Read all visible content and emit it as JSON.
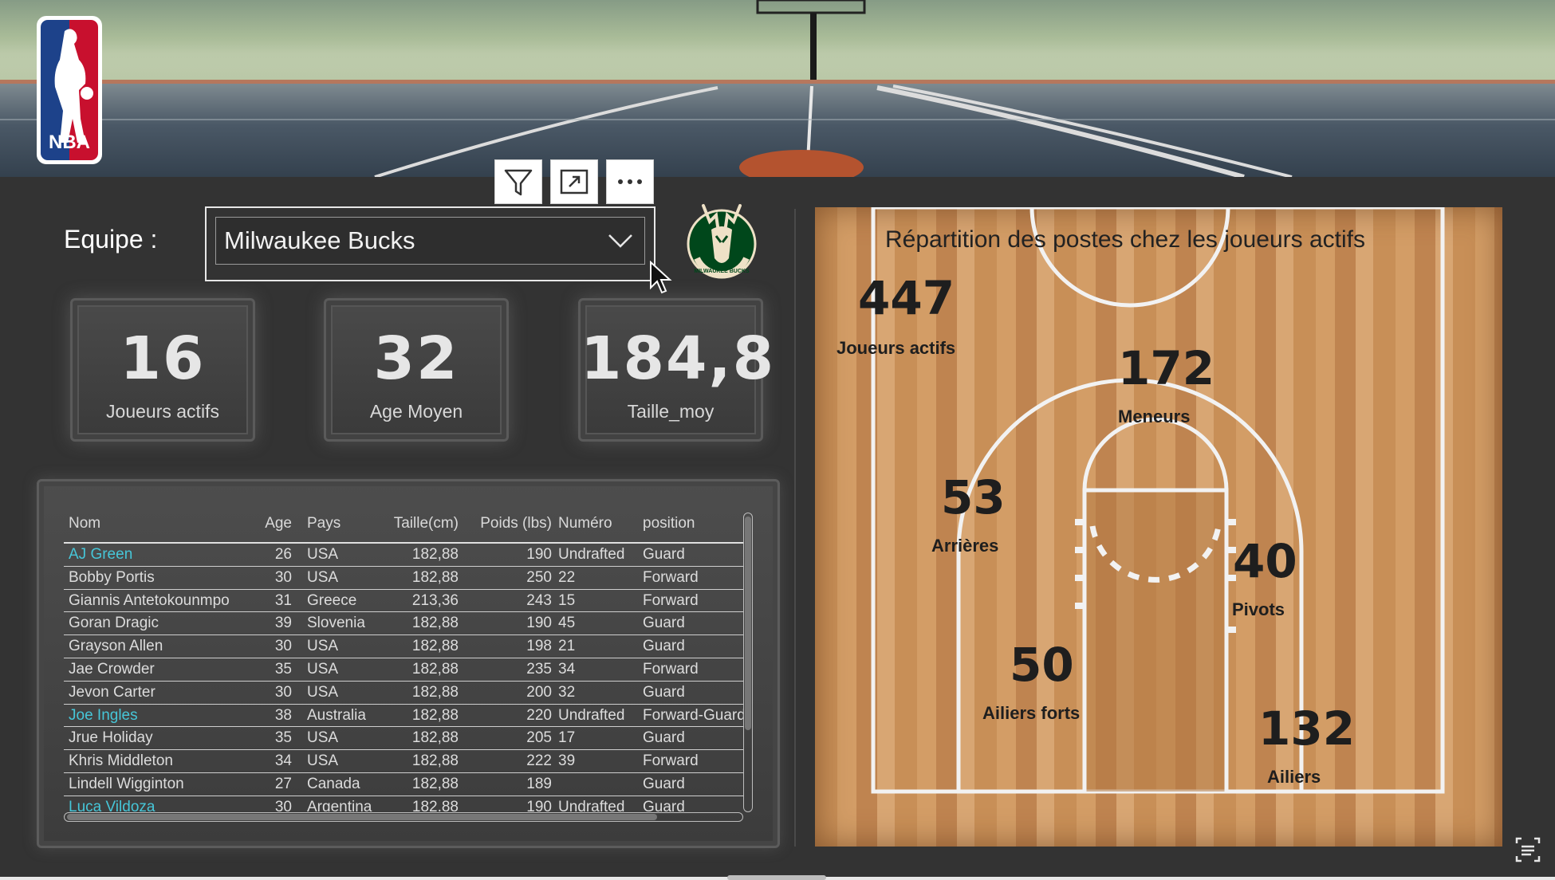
{
  "filter": {
    "label": "Equipe :",
    "selected": "Milwaukee Bucks"
  },
  "kpis": [
    {
      "value": "16",
      "label": "Joueurs actifs"
    },
    {
      "value": "32",
      "label": "Age Moyen"
    },
    {
      "value": "184,8",
      "label": "Taille_moy"
    }
  ],
  "toolbar": {
    "icons": [
      "filter-icon",
      "focus-mode-icon",
      "more-options-icon"
    ]
  },
  "table": {
    "headers": {
      "nom": "Nom",
      "age": "Age",
      "pays": "Pays",
      "taille": "Taille(cm)",
      "poids": "Poids (lbs)",
      "numero": "Numéro",
      "position": "position"
    },
    "rows": [
      {
        "nom": "AJ Green",
        "age": "26",
        "pays": "USA",
        "taille": "182,88",
        "poids": "190",
        "numero": "Undrafted",
        "position": "Guard",
        "link": true
      },
      {
        "nom": "Bobby Portis",
        "age": "30",
        "pays": "USA",
        "taille": "182,88",
        "poids": "250",
        "numero": "22",
        "position": "Forward",
        "link": false
      },
      {
        "nom": "Giannis Antetokounmpo",
        "age": "31",
        "pays": "Greece",
        "taille": "213,36",
        "poids": "243",
        "numero": "15",
        "position": "Forward",
        "link": false
      },
      {
        "nom": "Goran Dragic",
        "age": "39",
        "pays": "Slovenia",
        "taille": "182,88",
        "poids": "190",
        "numero": "45",
        "position": "Guard",
        "link": false
      },
      {
        "nom": "Grayson Allen",
        "age": "30",
        "pays": "USA",
        "taille": "182,88",
        "poids": "198",
        "numero": "21",
        "position": "Guard",
        "link": false
      },
      {
        "nom": "Jae Crowder",
        "age": "35",
        "pays": "USA",
        "taille": "182,88",
        "poids": "235",
        "numero": "34",
        "position": "Forward",
        "link": false
      },
      {
        "nom": "Jevon Carter",
        "age": "30",
        "pays": "USA",
        "taille": "182,88",
        "poids": "200",
        "numero": "32",
        "position": "Guard",
        "link": false
      },
      {
        "nom": "Joe Ingles",
        "age": "38",
        "pays": "Australia",
        "taille": "182,88",
        "poids": "220",
        "numero": "Undrafted",
        "position": "Forward-Guard",
        "link": true
      },
      {
        "nom": "Jrue Holiday",
        "age": "35",
        "pays": "USA",
        "taille": "182,88",
        "poids": "205",
        "numero": "17",
        "position": "Guard",
        "link": false
      },
      {
        "nom": "Khris Middleton",
        "age": "34",
        "pays": "USA",
        "taille": "182,88",
        "poids": "222",
        "numero": "39",
        "position": "Forward",
        "link": false
      },
      {
        "nom": "Lindell Wigginton",
        "age": "27",
        "pays": "Canada",
        "taille": "182,88",
        "poids": "189",
        "numero": "",
        "position": "Guard",
        "link": false
      },
      {
        "nom": "Luca Vildoza",
        "age": "30",
        "pays": "Argentina",
        "taille": "182,88",
        "poids": "190",
        "numero": "Undrafted",
        "position": "Guard",
        "link": true
      }
    ]
  },
  "court": {
    "title": "Répartition des postes chez les joueurs actifs",
    "stats": [
      {
        "key": "joueurs-actifs",
        "value": "447",
        "label": "Joueurs actifs"
      },
      {
        "key": "meneurs",
        "value": "172",
        "label": "Meneurs"
      },
      {
        "key": "arrieres",
        "value": "53",
        "label": "Arrières"
      },
      {
        "key": "pivots",
        "value": "40",
        "label": "Pivots"
      },
      {
        "key": "ailiers-forts",
        "value": "50",
        "label": "Ailiers forts"
      },
      {
        "key": "ailiers",
        "value": "132",
        "label": "Ailiers"
      }
    ]
  },
  "logos": {
    "nba": "NBA",
    "team": "MILWAUKEE BUCKS"
  },
  "colors": {
    "background": "#333333",
    "link": "#46c6d8",
    "court_wood": "#c88f57"
  }
}
